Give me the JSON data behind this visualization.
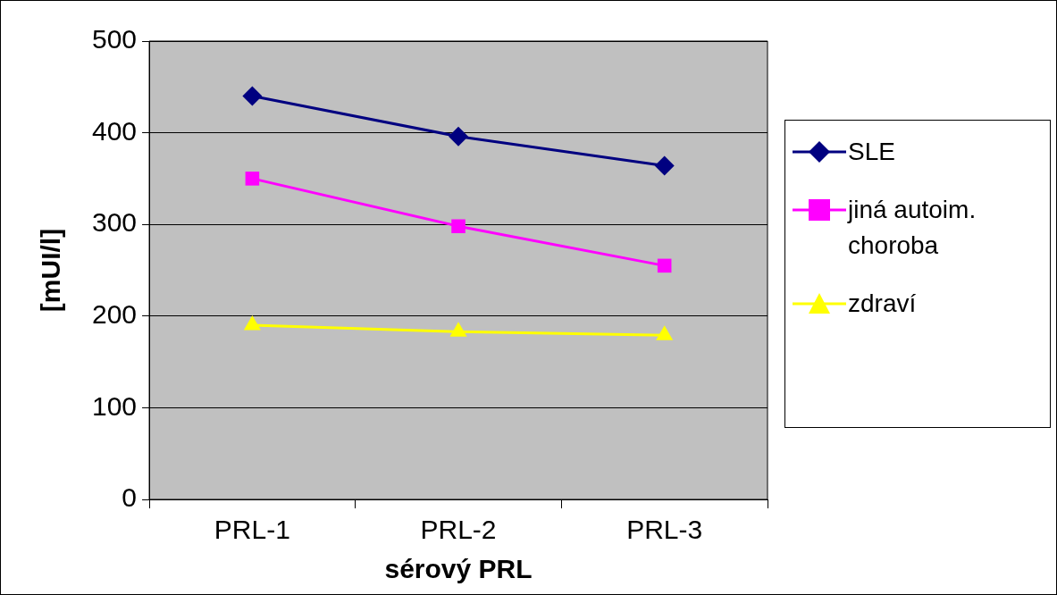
{
  "chart_data": {
    "type": "line",
    "xlabel": "sérový PRL",
    "ylabel": "[mUI/l]",
    "categories": [
      "PRL-1",
      "PRL-2",
      "PRL-3"
    ],
    "series": [
      {
        "name": "SLE",
        "color": "#000080",
        "marker": "diamond",
        "values": [
          440,
          396,
          364
        ]
      },
      {
        "name": "jiná autoim. choroba",
        "color": "#ff00ff",
        "marker": "square",
        "values": [
          350,
          298,
          255
        ]
      },
      {
        "name": "zdraví",
        "color": "#ffff00",
        "marker": "triangle",
        "values": [
          190,
          183,
          179
        ]
      }
    ],
    "ylim": [
      0,
      500
    ],
    "yticks": [
      0,
      100,
      200,
      300,
      400,
      500
    ],
    "grid": "y",
    "legend": "right"
  }
}
